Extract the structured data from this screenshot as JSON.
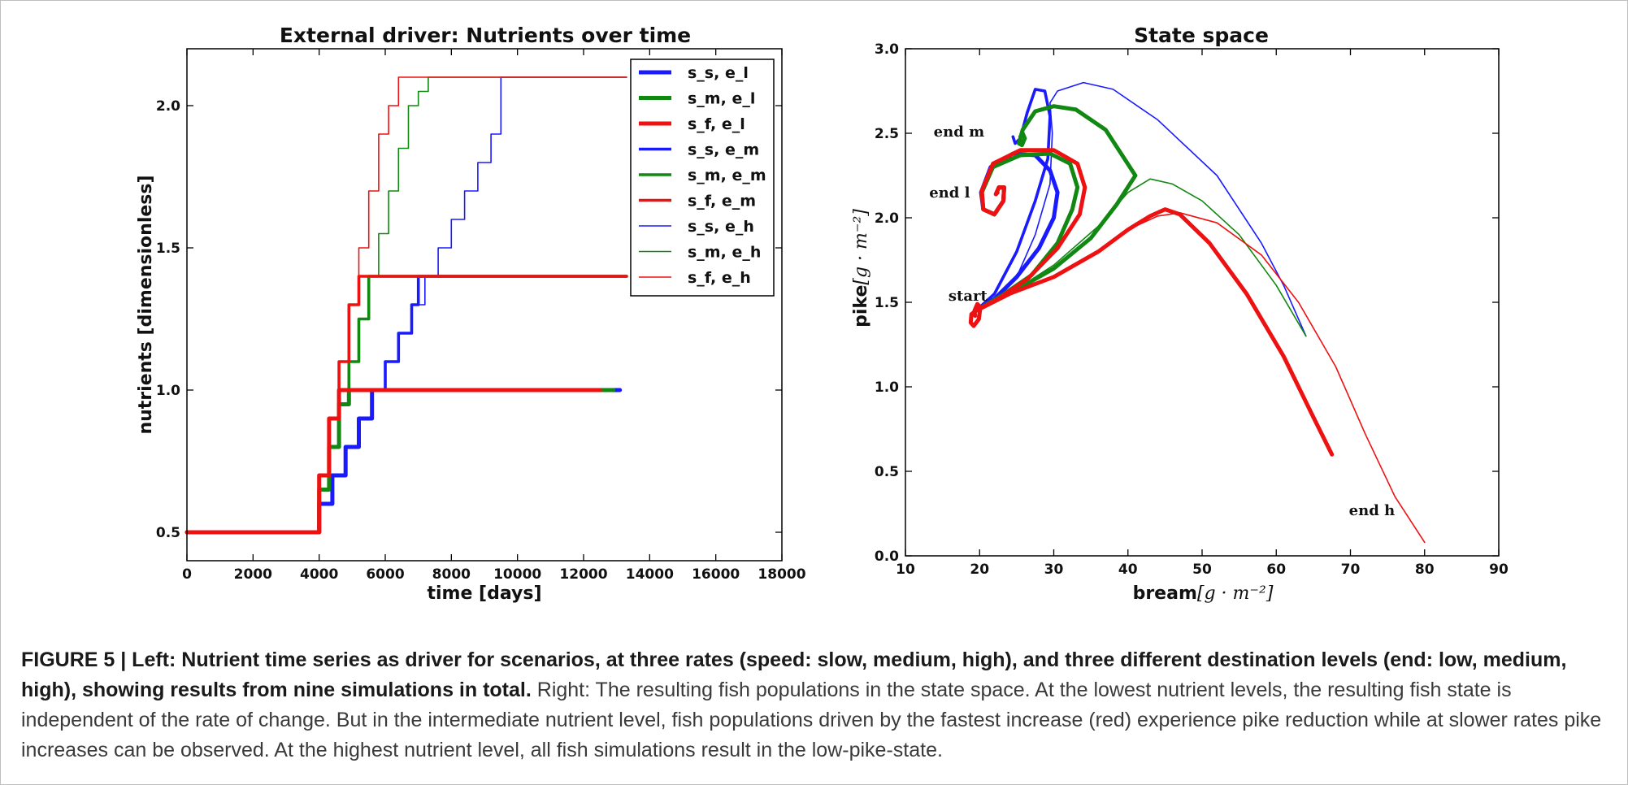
{
  "chart_data": [
    {
      "type": "line",
      "title": "External driver: Nutrients over time",
      "xlabel": "time [days]",
      "ylabel": "nutrients [dimensionless]",
      "xlim": [
        0,
        18000
      ],
      "ylim": [
        0.4,
        2.2
      ],
      "xticks": [
        0,
        2000,
        4000,
        6000,
        8000,
        10000,
        12000,
        14000,
        16000,
        18000
      ],
      "yticks": [
        0.5,
        1.0,
        1.5,
        2.0
      ],
      "legend_position": "top-right",
      "series": [
        {
          "name": "s_s, e_l",
          "color": "#1a1aff",
          "width": "thick",
          "x": [
            0,
            4000,
            4000,
            4400,
            4400,
            4800,
            4800,
            5200,
            5200,
            5600,
            5600,
            13100
          ],
          "y": [
            0.5,
            0.5,
            0.6,
            0.6,
            0.7,
            0.7,
            0.8,
            0.8,
            0.9,
            0.9,
            1.0,
            1.0
          ]
        },
        {
          "name": "s_m, e_l",
          "color": "#118811",
          "width": "thick",
          "x": [
            0,
            4000,
            4000,
            4300,
            4300,
            4600,
            4600,
            4900,
            4900,
            5200,
            5200,
            12900
          ],
          "y": [
            0.5,
            0.5,
            0.65,
            0.65,
            0.8,
            0.8,
            0.95,
            0.95,
            1.0,
            1.0,
            1.0,
            1.0
          ]
        },
        {
          "name": "s_f, e_l",
          "color": "#ee1111",
          "width": "thick",
          "x": [
            0,
            4000,
            4000,
            4300,
            4300,
            4600,
            4600,
            12500
          ],
          "y": [
            0.5,
            0.5,
            0.7,
            0.7,
            0.9,
            0.9,
            1.0,
            1.0
          ]
        },
        {
          "name": "s_s, e_m",
          "color": "#1a1aff",
          "width": "medium",
          "x": [
            0,
            4000,
            4000,
            4400,
            4400,
            4800,
            4800,
            5200,
            5200,
            5600,
            5600,
            6000,
            6000,
            6400,
            6400,
            6800,
            6800,
            7000,
            7000,
            13300
          ],
          "y": [
            0.5,
            0.5,
            0.6,
            0.6,
            0.7,
            0.7,
            0.8,
            0.8,
            0.9,
            0.9,
            1.0,
            1.0,
            1.1,
            1.1,
            1.2,
            1.2,
            1.3,
            1.3,
            1.4,
            1.4
          ]
        },
        {
          "name": "s_m, e_m",
          "color": "#118811",
          "width": "medium",
          "x": [
            0,
            4000,
            4000,
            4300,
            4300,
            4600,
            4600,
            4900,
            4900,
            5200,
            5200,
            5500,
            5500,
            5800,
            5800,
            13300
          ],
          "y": [
            0.5,
            0.5,
            0.65,
            0.65,
            0.8,
            0.8,
            0.95,
            0.95,
            1.1,
            1.1,
            1.25,
            1.25,
            1.4,
            1.4,
            1.4,
            1.4
          ]
        },
        {
          "name": "s_f, e_m",
          "color": "#ee1111",
          "width": "medium",
          "x": [
            0,
            4000,
            4000,
            4300,
            4300,
            4600,
            4600,
            4900,
            4900,
            5200,
            5200,
            5500,
            5500,
            13300
          ],
          "y": [
            0.5,
            0.5,
            0.7,
            0.7,
            0.9,
            0.9,
            1.1,
            1.1,
            1.3,
            1.3,
            1.4,
            1.4,
            1.4,
            1.4
          ]
        },
        {
          "name": "s_s, e_h",
          "color": "#1a1aff",
          "width": "thin",
          "x": [
            0,
            4000,
            4000,
            4400,
            4400,
            4800,
            4800,
            5200,
            5200,
            5600,
            5600,
            6000,
            6000,
            6400,
            6400,
            6800,
            6800,
            7200,
            7200,
            7600,
            7600,
            8000,
            8000,
            8400,
            8400,
            8800,
            8800,
            9200,
            9200,
            9500,
            9500,
            13300
          ],
          "y": [
            0.5,
            0.5,
            0.6,
            0.6,
            0.7,
            0.7,
            0.8,
            0.8,
            0.9,
            0.9,
            1.0,
            1.0,
            1.1,
            1.1,
            1.2,
            1.2,
            1.3,
            1.3,
            1.4,
            1.4,
            1.5,
            1.5,
            1.6,
            1.6,
            1.7,
            1.7,
            1.8,
            1.8,
            1.9,
            1.9,
            2.1,
            2.1
          ]
        },
        {
          "name": "s_m, e_h",
          "color": "#118811",
          "width": "thin",
          "x": [
            0,
            4000,
            4000,
            4300,
            4300,
            4600,
            4600,
            4900,
            4900,
            5200,
            5200,
            5500,
            5500,
            5800,
            5800,
            6100,
            6100,
            6400,
            6400,
            6700,
            6700,
            7000,
            7000,
            7300,
            7300,
            7600,
            7600,
            13300
          ],
          "y": [
            0.5,
            0.5,
            0.65,
            0.65,
            0.8,
            0.8,
            0.95,
            0.95,
            1.1,
            1.1,
            1.25,
            1.25,
            1.4,
            1.4,
            1.55,
            1.55,
            1.7,
            1.7,
            1.85,
            1.85,
            2.0,
            2.0,
            2.05,
            2.05,
            2.1,
            2.1,
            2.1,
            2.1
          ]
        },
        {
          "name": "s_f, e_h",
          "color": "#ee1111",
          "width": "thin",
          "x": [
            0,
            4000,
            4000,
            4300,
            4300,
            4600,
            4600,
            4900,
            4900,
            5200,
            5200,
            5500,
            5500,
            5800,
            5800,
            6100,
            6100,
            6400,
            6400,
            13300
          ],
          "y": [
            0.5,
            0.5,
            0.7,
            0.7,
            0.9,
            0.9,
            1.1,
            1.1,
            1.3,
            1.3,
            1.5,
            1.5,
            1.7,
            1.7,
            1.9,
            1.9,
            2.0,
            2.0,
            2.1,
            2.1
          ]
        }
      ]
    },
    {
      "type": "line",
      "title": "State space",
      "xlabel_text": "bream",
      "xlabel_math": "[g · m⁻²]",
      "ylabel_text": "pike",
      "ylabel_math": "[g · m⁻²]",
      "xlim": [
        10,
        90
      ],
      "ylim": [
        0.0,
        3.0
      ],
      "xticks": [
        10,
        20,
        30,
        40,
        50,
        60,
        70,
        80,
        90
      ],
      "yticks": [
        0.0,
        0.5,
        1.0,
        1.5,
        2.0,
        2.5,
        3.0
      ],
      "annotations": [
        {
          "text": "end m",
          "x": 13.8,
          "y": 2.48
        },
        {
          "text": "end l",
          "x": 13.2,
          "y": 2.12
        },
        {
          "text": "start",
          "x": 15.8,
          "y": 1.51
        },
        {
          "text": "end h",
          "x": 69.8,
          "y": 0.24
        }
      ],
      "series": [
        {
          "color": "#1a1aff",
          "width": "thin",
          "x": [
            19.5,
            22,
            25,
            27.5,
            29.5,
            29.8,
            29.5,
            30.5,
            34,
            38,
            44,
            52,
            58,
            61,
            64
          ],
          "y": [
            1.45,
            1.5,
            1.65,
            1.9,
            2.2,
            2.5,
            2.68,
            2.75,
            2.8,
            2.76,
            2.58,
            2.25,
            1.85,
            1.6,
            1.3
          ]
        },
        {
          "color": "#1a1aff",
          "width": "medium",
          "x": [
            19.5,
            22,
            25,
            27.5,
            29.2,
            29.5,
            28.8,
            27.5,
            26.4,
            25.5,
            24.8,
            24.5
          ],
          "y": [
            1.45,
            1.55,
            1.8,
            2.1,
            2.35,
            2.6,
            2.75,
            2.76,
            2.62,
            2.47,
            2.44,
            2.48
          ]
        },
        {
          "color": "#1a1aff",
          "width": "thick",
          "x": [
            19.5,
            22,
            25,
            28,
            30,
            30.5,
            29.5,
            27.5,
            24.5,
            21.5,
            20.2,
            20.5,
            22,
            23.2,
            23.3,
            22.6,
            22.2,
            22.4
          ],
          "y": [
            1.45,
            1.52,
            1.65,
            1.82,
            2.0,
            2.15,
            2.28,
            2.37,
            2.38,
            2.3,
            2.15,
            2.05,
            2.02,
            2.1,
            2.18,
            2.18,
            2.14,
            2.15
          ]
        },
        {
          "color": "#118811",
          "width": "thin",
          "x": [
            19.5,
            24,
            30,
            36,
            40,
            43,
            46,
            50,
            55,
            60,
            64
          ],
          "y": [
            1.45,
            1.55,
            1.72,
            1.95,
            2.15,
            2.23,
            2.2,
            2.1,
            1.9,
            1.6,
            1.3
          ]
        },
        {
          "color": "#118811",
          "width": "thick",
          "x": [
            19.5,
            24,
            30,
            35,
            38.5,
            41,
            37,
            33,
            30,
            27.5,
            25.8,
            25.3,
            25.7,
            26.1,
            25.8,
            25.5
          ],
          "y": [
            1.45,
            1.55,
            1.7,
            1.88,
            2.08,
            2.25,
            2.52,
            2.64,
            2.66,
            2.63,
            2.52,
            2.44,
            2.43,
            2.47,
            2.5,
            2.48
          ]
        },
        {
          "color": "#118811",
          "width": "thick",
          "x": [
            19.5,
            23,
            27,
            30.5,
            32.5,
            33.2,
            32.2,
            29.5,
            25.5,
            21.8,
            20.3,
            20.5,
            22,
            23.2,
            23.3,
            22.6,
            22.2,
            22.4
          ],
          "y": [
            1.45,
            1.54,
            1.66,
            1.85,
            2.05,
            2.18,
            2.32,
            2.38,
            2.37,
            2.3,
            2.15,
            2.05,
            2.02,
            2.1,
            2.18,
            2.18,
            2.14,
            2.15
          ]
        },
        {
          "color": "#ee1111",
          "width": "thin",
          "x": [
            19.5,
            24,
            30,
            36,
            40,
            44,
            47,
            52,
            58,
            63,
            68,
            72,
            76,
            80
          ],
          "y": [
            1.45,
            1.55,
            1.65,
            1.8,
            1.93,
            2.01,
            2.03,
            1.97,
            1.78,
            1.5,
            1.12,
            0.72,
            0.35,
            0.08
          ]
        },
        {
          "color": "#ee1111",
          "width": "thick",
          "x": [
            19.5,
            24,
            30,
            36,
            40,
            43,
            45,
            47,
            51,
            56,
            61,
            65,
            67.5
          ],
          "y": [
            1.45,
            1.55,
            1.65,
            1.8,
            1.93,
            2.01,
            2.05,
            2.02,
            1.85,
            1.55,
            1.18,
            0.82,
            0.6
          ]
        },
        {
          "color": "#ee1111",
          "width": "thick",
          "x": [
            19.5,
            22.5,
            26.5,
            30.5,
            33.5,
            34.2,
            33.2,
            30,
            25.5,
            21.8,
            20.3,
            20.5,
            22,
            23.2,
            23.3,
            22.6,
            22.2,
            22.4
          ],
          "y": [
            1.45,
            1.52,
            1.64,
            1.82,
            2.02,
            2.18,
            2.32,
            2.4,
            2.4,
            2.32,
            2.16,
            2.05,
            2.02,
            2.1,
            2.18,
            2.18,
            2.14,
            2.15
          ]
        },
        {
          "color": "#ee1111",
          "width": "thick",
          "x": [
            19.5,
            18.9,
            18.8,
            19.2,
            19.9,
            20.1,
            19.7,
            19.3,
            19.4
          ],
          "y": [
            1.45,
            1.43,
            1.38,
            1.36,
            1.4,
            1.47,
            1.49,
            1.45,
            1.42
          ]
        }
      ]
    }
  ],
  "caption": {
    "bold": "FIGURE 5 | Left: Nutrient time series as driver for scenarios, at three rates (speed: slow, medium, high), and three different destination levels (end: low, medium, high), showing results from nine simulations in total.",
    "text": " Right: The resulting fish populations in the state space. At the lowest nutrient levels, the resulting fish state is independent of the rate of change. But in the intermediate nutrient level, fish populations driven by the fastest increase (red) experience pike reduction while at slower rates pike increases can be observed. At the highest nutrient level, all fish simulations result in the low-pike-state."
  }
}
